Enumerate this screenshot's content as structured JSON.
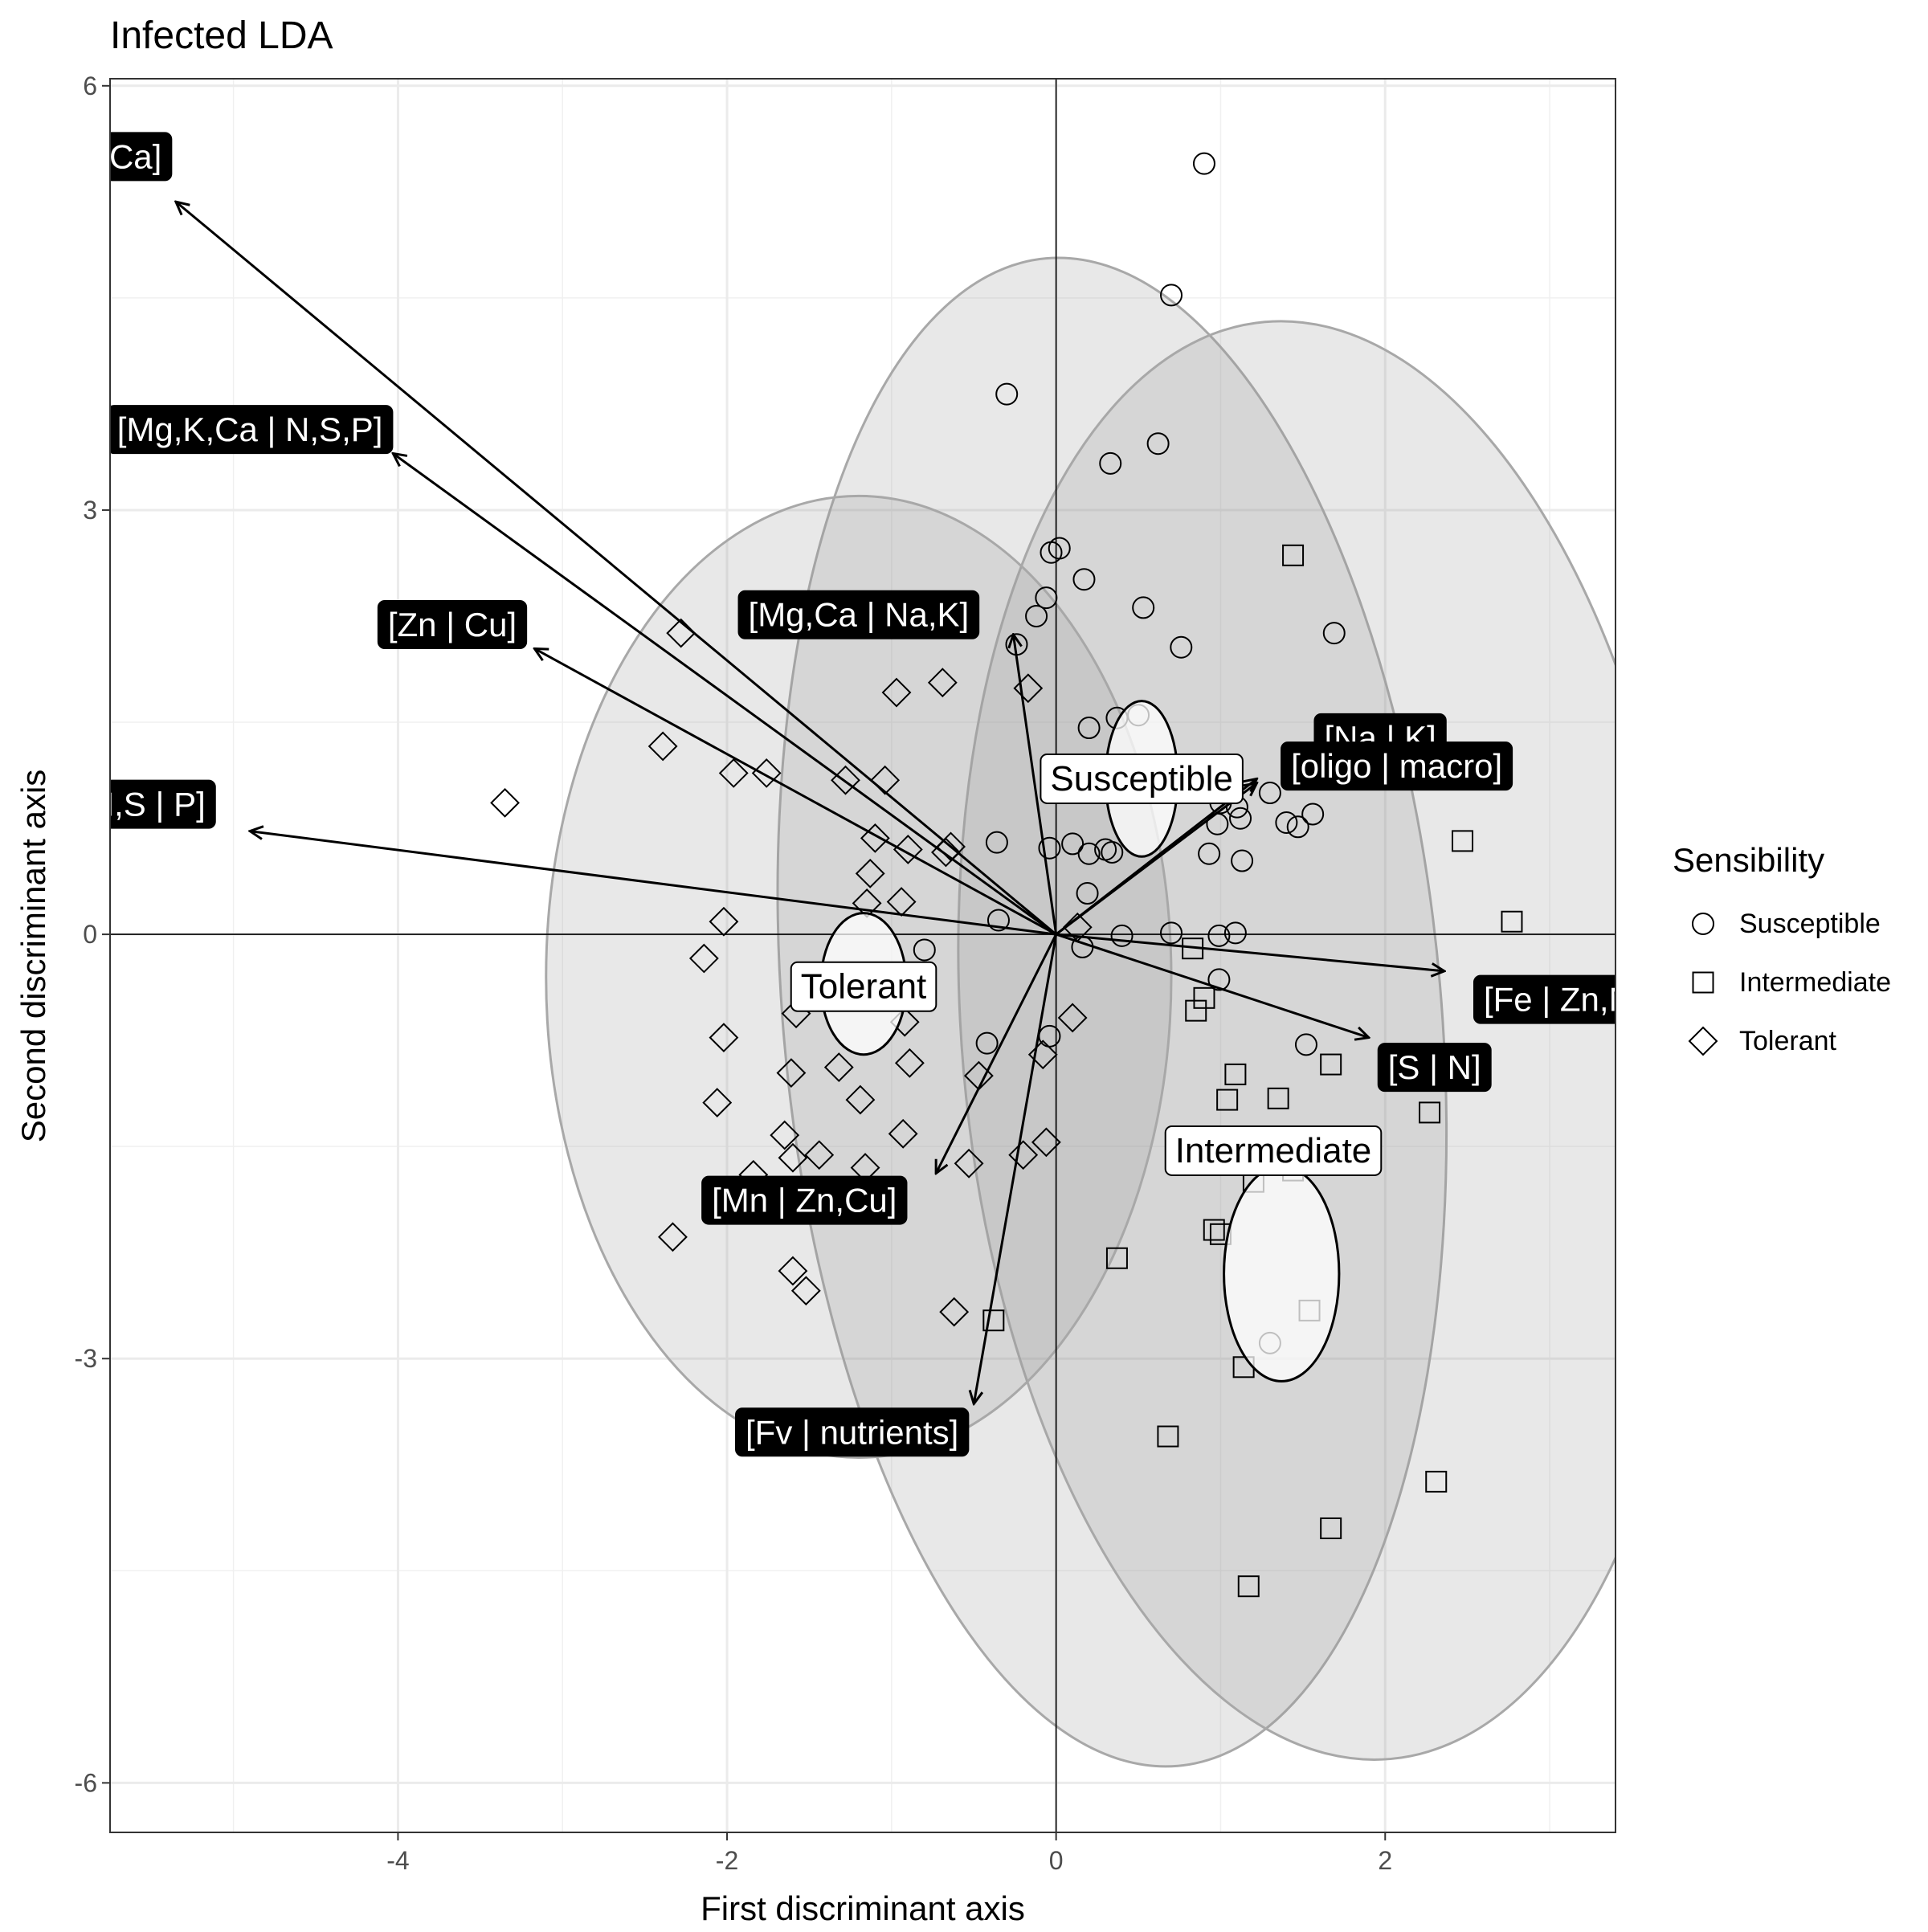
{
  "chart_data": {
    "type": "scatter",
    "title": "Infected LDA",
    "xlabel": "First discriminant axis",
    "ylabel": "Second discriminant axis",
    "xlim": [
      -5.75,
      3.4
    ],
    "ylim": [
      -6.35,
      6.05
    ],
    "xticks": [
      -4,
      -2,
      0,
      2
    ],
    "yticks": [
      -6,
      -3,
      0,
      3,
      6
    ],
    "xtick_labels": [
      "-4",
      "-2",
      "0",
      "2"
    ],
    "ytick_labels": [
      "-6",
      "-3",
      "0",
      "3",
      "6"
    ],
    "grid": true,
    "legend": {
      "title": "Sensibility",
      "position": "right",
      "entries": [
        {
          "label": "Susceptible",
          "shape": "circle"
        },
        {
          "label": "Intermediate",
          "shape": "square"
        },
        {
          "label": "Tolerant",
          "shape": "diamond"
        }
      ]
    },
    "series": [
      {
        "name": "Susceptible",
        "shape": "circle",
        "points": [
          [
            0.9,
            5.45
          ],
          [
            0.7,
            4.52
          ],
          [
            -0.3,
            3.82
          ],
          [
            0.62,
            3.47
          ],
          [
            0.33,
            3.33
          ],
          [
            0.02,
            2.73
          ],
          [
            -0.03,
            2.7
          ],
          [
            0.17,
            2.51
          ],
          [
            -0.06,
            2.38
          ],
          [
            0.53,
            2.31
          ],
          [
            -0.12,
            2.25
          ],
          [
            1.69,
            2.13
          ],
          [
            0.76,
            2.03
          ],
          [
            -0.24,
            2.05
          ],
          [
            0.37,
            1.53
          ],
          [
            0.2,
            1.46
          ],
          [
            1.3,
            1.0
          ],
          [
            1.0,
            0.93
          ],
          [
            1.1,
            0.9
          ],
          [
            1.56,
            0.85
          ],
          [
            1.4,
            0.79
          ],
          [
            1.47,
            0.76
          ],
          [
            1.12,
            0.82
          ],
          [
            0.98,
            0.78
          ],
          [
            1.13,
            0.52
          ],
          [
            0.93,
            0.57
          ],
          [
            0.1,
            0.64
          ],
          [
            -0.36,
            0.65
          ],
          [
            -0.04,
            0.61
          ],
          [
            0.2,
            0.57
          ],
          [
            0.3,
            0.6
          ],
          [
            0.34,
            0.58
          ],
          [
            0.19,
            0.29
          ],
          [
            -0.35,
            0.1
          ],
          [
            0.4,
            -0.01
          ],
          [
            0.7,
            0.01
          ],
          [
            0.99,
            -0.01
          ],
          [
            1.09,
            0.01
          ],
          [
            0.16,
            -0.09
          ],
          [
            -0.8,
            -0.11
          ],
          [
            0.99,
            -0.32
          ],
          [
            -0.42,
            -0.77
          ],
          [
            -0.04,
            -0.72
          ],
          [
            1.52,
            -0.78
          ],
          [
            1.3,
            -2.89
          ],
          [
            0.5,
            1.55
          ]
        ]
      },
      {
        "name": "Intermediate",
        "shape": "square",
        "points": [
          [
            1.44,
            2.68
          ],
          [
            2.47,
            0.66
          ],
          [
            2.77,
            0.09
          ],
          [
            0.83,
            -0.1
          ],
          [
            0.9,
            -0.45
          ],
          [
            0.85,
            -0.54
          ],
          [
            1.67,
            -0.92
          ],
          [
            1.09,
            -0.99
          ],
          [
            1.04,
            -1.17
          ],
          [
            1.35,
            -1.16
          ],
          [
            2.27,
            -1.26
          ],
          [
            1.2,
            -1.75
          ],
          [
            1.44,
            -1.67
          ],
          [
            0.96,
            -2.09
          ],
          [
            1.0,
            -2.12
          ],
          [
            0.37,
            -2.29
          ],
          [
            1.54,
            -2.66
          ],
          [
            -0.38,
            -2.73
          ],
          [
            1.14,
            -3.06
          ],
          [
            0.68,
            -3.55
          ],
          [
            2.31,
            -3.87
          ],
          [
            1.67,
            -4.2
          ],
          [
            1.17,
            -4.61
          ]
        ]
      },
      {
        "name": "Tolerant",
        "shape": "diamond",
        "points": [
          [
            -2.28,
            2.13
          ],
          [
            -0.69,
            1.78
          ],
          [
            -0.97,
            1.71
          ],
          [
            -0.17,
            1.74
          ],
          [
            -2.39,
            1.33
          ],
          [
            -1.96,
            1.14
          ],
          [
            -1.76,
            1.14
          ],
          [
            -1.28,
            1.09
          ],
          [
            -1.04,
            1.09
          ],
          [
            -3.35,
            0.93
          ],
          [
            -1.1,
            0.68
          ],
          [
            -0.64,
            0.62
          ],
          [
            -0.67,
            0.58
          ],
          [
            -0.9,
            0.6
          ],
          [
            -1.13,
            0.43
          ],
          [
            -0.94,
            0.23
          ],
          [
            -1.15,
            0.22
          ],
          [
            -2.02,
            0.09
          ],
          [
            0.13,
            0.05
          ],
          [
            -2.14,
            -0.17
          ],
          [
            -1.58,
            -0.56
          ],
          [
            -0.92,
            -0.62
          ],
          [
            0.1,
            -0.59
          ],
          [
            -2.02,
            -0.73
          ],
          [
            -0.08,
            -0.85
          ],
          [
            -0.89,
            -0.91
          ],
          [
            -1.32,
            -0.94
          ],
          [
            -1.61,
            -0.98
          ],
          [
            -0.47,
            -1.0
          ],
          [
            -2.06,
            -1.19
          ],
          [
            -1.19,
            -1.17
          ],
          [
            -0.93,
            -1.41
          ],
          [
            -1.65,
            -1.42
          ],
          [
            -0.06,
            -1.47
          ],
          [
            -1.44,
            -1.56
          ],
          [
            -1.6,
            -1.58
          ],
          [
            -0.2,
            -1.56
          ],
          [
            -1.16,
            -1.65
          ],
          [
            -0.53,
            -1.62
          ],
          [
            -1.84,
            -1.7
          ],
          [
            -2.33,
            -2.14
          ],
          [
            -1.6,
            -2.38
          ],
          [
            -1.52,
            -2.52
          ],
          [
            -0.62,
            -2.67
          ]
        ]
      }
    ],
    "ellipses": [
      {
        "name": "Susceptible-region",
        "cx": 0.34,
        "cy": -0.55,
        "rx": 2.0,
        "ry": 5.35,
        "angle": -5
      },
      {
        "name": "Intermediate-region",
        "cx": 1.65,
        "cy": -0.75,
        "rx": 2.22,
        "ry": 5.1,
        "angle": -5
      },
      {
        "name": "Tolerant-region",
        "cx": -1.2,
        "cy": -0.3,
        "rx": 1.9,
        "ry": 3.4,
        "angle": 0
      }
    ],
    "group_centers": [
      {
        "label": "Susceptible",
        "x": 0.52,
        "y": 1.1,
        "rx": 0.22,
        "ry": 0.55,
        "label_x": 0.52,
        "label_y": 1.1
      },
      {
        "label": "Tolerant",
        "x": -1.17,
        "y": -0.35,
        "rx": 0.26,
        "ry": 0.5,
        "label_x": -1.17,
        "label_y": -0.37
      },
      {
        "label": "Intermediate",
        "x": 1.37,
        "y": -2.4,
        "rx": 0.35,
        "ry": 0.76,
        "label_x": 1.32,
        "label_y": -1.53
      }
    ],
    "loadings": [
      {
        "label": "[Mg | Ca]",
        "x": -5.35,
        "y": 5.18,
        "label_x": -5.85,
        "label_y": 5.5
      },
      {
        "label": "[Mg,K,Ca | N,S,P]",
        "x": -4.03,
        "y": 3.4,
        "label_x": -4.9,
        "label_y": 3.57
      },
      {
        "label": "[Zn | Cu]",
        "x": -3.17,
        "y": 2.02,
        "label_x": -3.67,
        "label_y": 2.19
      },
      {
        "label": "[N,S | P]",
        "x": -4.9,
        "y": 0.73,
        "label_x": -5.55,
        "label_y": 0.92
      },
      {
        "label": "[Mg,Ca | Na,K]",
        "x": -0.26,
        "y": 2.12,
        "label_x": -1.2,
        "label_y": 2.26
      },
      {
        "label": "[Na | K]",
        "x": 1.22,
        "y": 1.1,
        "label_x": 1.97,
        "label_y": 1.39
      },
      {
        "label": "[oligo | macro]",
        "x": 1.22,
        "y": 1.07,
        "label_x": 2.07,
        "label_y": 1.19
      },
      {
        "label": "[Fe | Zn,Mn]",
        "x": 2.36,
        "y": -0.26,
        "label_x": 3.15,
        "label_y": -0.46
      },
      {
        "label": "[S | N]",
        "x": 1.9,
        "y": -0.73,
        "label_x": 2.3,
        "label_y": -0.94
      },
      {
        "label": "[Mn | Zn,Cu]",
        "x": -0.73,
        "y": -1.69,
        "label_x": -1.53,
        "label_y": -1.88
      },
      {
        "label": "[Fv | nutrients]",
        "x": -0.5,
        "y": -3.32,
        "label_x": -1.24,
        "label_y": -3.52
      }
    ]
  }
}
